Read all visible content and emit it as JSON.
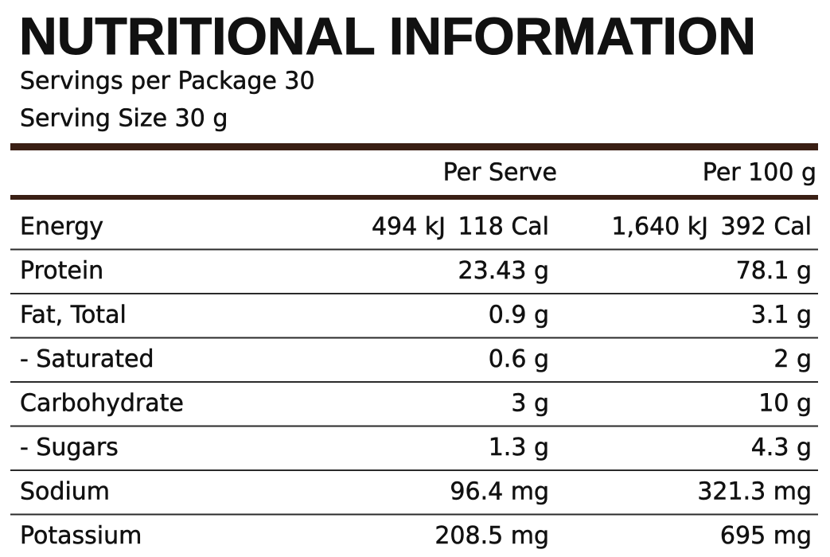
{
  "header": {
    "title": "NUTRITIONAL INFORMATION",
    "servings": "Servings per Package 30",
    "serving_size": "Serving Size 30 g"
  },
  "table": {
    "columns": [
      "Per Serve",
      "Per 100 g"
    ],
    "rows": [
      {
        "label": "Energy",
        "per_serve": [
          "494 kJ",
          "118 Cal"
        ],
        "per_100g": [
          "1,640 kJ",
          "392 Cal"
        ]
      },
      {
        "label": "Protein",
        "per_serve": [
          "23.43 g"
        ],
        "per_100g": [
          "78.1 g"
        ]
      },
      {
        "label": "Fat, Total",
        "per_serve": [
          "0.9 g"
        ],
        "per_100g": [
          "3.1 g"
        ]
      },
      {
        "label": "- Saturated",
        "per_serve": [
          "0.6 g"
        ],
        "per_100g": [
          "2 g"
        ]
      },
      {
        "label": "Carbohydrate",
        "per_serve": [
          "3 g"
        ],
        "per_100g": [
          "10 g"
        ]
      },
      {
        "label": "- Sugars",
        "per_serve": [
          "1.3 g"
        ],
        "per_100g": [
          "4.3 g"
        ]
      },
      {
        "label": "Sodium",
        "per_serve": [
          "96.4 mg"
        ],
        "per_100g": [
          "321.3 mg"
        ]
      },
      {
        "label": "Potassium",
        "per_serve": [
          "208.5 mg"
        ],
        "per_100g": [
          "695 mg"
        ]
      }
    ]
  }
}
